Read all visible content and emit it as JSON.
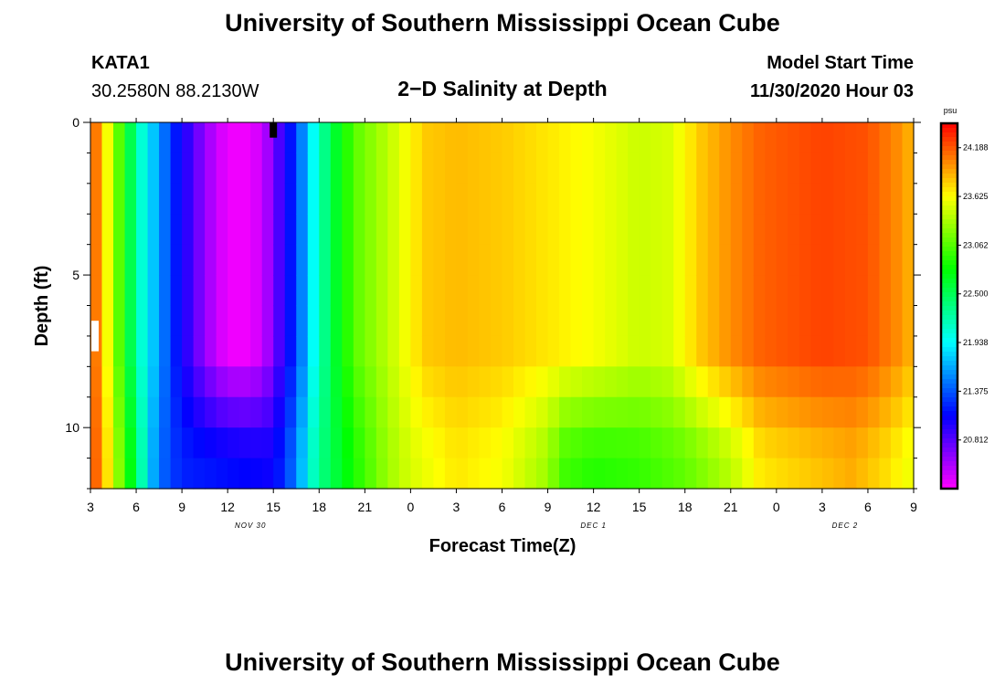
{
  "title": "University of Southern Mississippi Ocean Cube",
  "footer_title": "University of Southern Mississippi Ocean Cube",
  "station": {
    "id": "KATA1",
    "coords": "30.2580N 88.2130W"
  },
  "model": {
    "label": "Model Start Time",
    "time": "11/30/2020 Hour 03"
  },
  "chart_data": {
    "type": "heatmap",
    "title": "2−D Salinity at Depth",
    "xlabel": "Forecast Time(Z)",
    "ylabel": "Depth (ft)",
    "x_range_hours": [
      0,
      54
    ],
    "x_tick_labels": [
      "3",
      "6",
      "9",
      "12",
      "15",
      "18",
      "21",
      "0",
      "3",
      "6",
      "9",
      "12",
      "15",
      "18",
      "21",
      "0",
      "3",
      "6",
      "9"
    ],
    "date_labels": [
      {
        "text": "NOV  30",
        "hour": 10.5
      },
      {
        "text": "DEC  1",
        "hour": 33
      },
      {
        "text": "DEC  2",
        "hour": 49.5
      }
    ],
    "ylim": [
      0,
      12
    ],
    "y_ticks": [
      0,
      5,
      10
    ],
    "y_tick_labels": [
      "0",
      "5",
      "10"
    ],
    "colorbar": {
      "unit": "psu",
      "min": 20.25,
      "max": 24.47,
      "ticks": [
        24.188,
        23.625,
        23.062,
        22.5,
        21.938,
        21.375,
        20.812
      ],
      "tick_labels": [
        "24.188",
        "23.625",
        "23.062",
        "22.500",
        "21.938",
        "21.375",
        "20.812"
      ]
    },
    "surface_profile_psu": [
      [
        0,
        24.25
      ],
      [
        0.5,
        24.0
      ],
      [
        1,
        23.7
      ],
      [
        1.5,
        23.3
      ],
      [
        2,
        23.0
      ],
      [
        2.5,
        22.6
      ],
      [
        3,
        22.3
      ],
      [
        3.5,
        22.0
      ],
      [
        4.5,
        21.6
      ],
      [
        5.5,
        21.2
      ],
      [
        6.5,
        20.9
      ],
      [
        7.5,
        20.6
      ],
      [
        9,
        20.3
      ],
      [
        10.5,
        20.3
      ],
      [
        11.5,
        20.5
      ],
      [
        12.5,
        20.9
      ],
      [
        13.5,
        21.3
      ],
      [
        14.5,
        21.9
      ],
      [
        15.5,
        22.4
      ],
      [
        16.5,
        22.8
      ],
      [
        17.5,
        23.1
      ],
      [
        19.5,
        23.4
      ],
      [
        21,
        23.65
      ],
      [
        22,
        23.8
      ],
      [
        24,
        23.85
      ],
      [
        27,
        23.8
      ],
      [
        30,
        23.7
      ],
      [
        33,
        23.6
      ],
      [
        36,
        23.45
      ],
      [
        38,
        23.5
      ],
      [
        40,
        23.8
      ],
      [
        42,
        24.0
      ],
      [
        44,
        24.15
      ],
      [
        48,
        24.25
      ],
      [
        51,
        24.2
      ],
      [
        53,
        24.0
      ],
      [
        54,
        23.85
      ]
    ],
    "bottom_profile_psu": [
      [
        0,
        24.2
      ],
      [
        0.5,
        24.1
      ],
      [
        1,
        23.8
      ],
      [
        1.5,
        23.45
      ],
      [
        2,
        23.15
      ],
      [
        2.5,
        22.8
      ],
      [
        3,
        22.5
      ],
      [
        3.5,
        22.1
      ],
      [
        4,
        21.7
      ],
      [
        5,
        21.35
      ],
      [
        6,
        21.2
      ],
      [
        8,
        21.15
      ],
      [
        10,
        21.1
      ],
      [
        12,
        21.05
      ],
      [
        13.5,
        21.5
      ],
      [
        14.5,
        22.1
      ],
      [
        15.5,
        22.45
      ],
      [
        17.5,
        22.9
      ],
      [
        19.5,
        23.3
      ],
      [
        21,
        23.5
      ],
      [
        24,
        23.7
      ],
      [
        27,
        23.6
      ],
      [
        30,
        23.3
      ],
      [
        31,
        23.0
      ],
      [
        33,
        22.9
      ],
      [
        36,
        22.95
      ],
      [
        39,
        23.1
      ],
      [
        42,
        23.4
      ],
      [
        44,
        23.7
      ],
      [
        47,
        23.8
      ],
      [
        50,
        23.9
      ],
      [
        52,
        23.75
      ],
      [
        54,
        23.55
      ]
    ],
    "deep_mix_start_ft": 7.5,
    "markers": [
      {
        "name": "current-time-marker",
        "hour": 12,
        "depth_ft": [
          0,
          0.5
        ],
        "color": "#000000"
      },
      {
        "name": "station-depth-marker",
        "hour": 0.3,
        "depth_ft": [
          6.5,
          7.5
        ],
        "color": "#ffffff"
      }
    ]
  }
}
